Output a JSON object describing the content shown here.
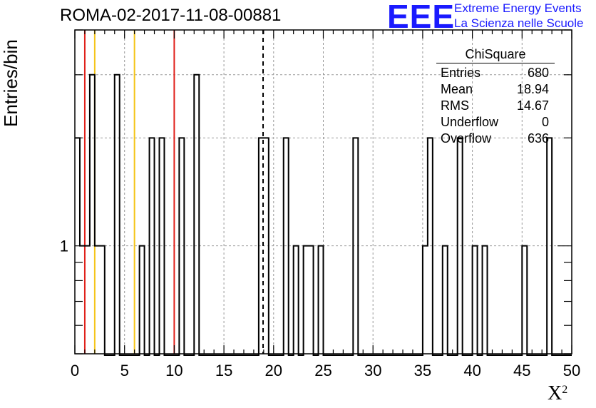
{
  "title": "ROMA-02-2017-11-08-00881",
  "logo": {
    "mark": "EEE",
    "line1": "Extreme Energy Events",
    "line2": "La Scienza nelle Scuole",
    "color": "#1a1aff"
  },
  "stats": {
    "title": "ChiSquare",
    "rows": [
      {
        "label": "Entries",
        "value": "680"
      },
      {
        "label": "Mean",
        "value": "18.94"
      },
      {
        "label": "RMS",
        "value": "14.67"
      },
      {
        "label": "Underflow",
        "value": "0"
      },
      {
        "label": "Overflow",
        "value": "636"
      }
    ]
  },
  "chart_data": {
    "type": "bar",
    "histogram": true,
    "title": "ROMA-02-2017-11-08-00881",
    "xlabel": "X²",
    "ylabel": "Entries/bin",
    "xlim": [
      0,
      50
    ],
    "ylog": true,
    "ylim": [
      0.5,
      4
    ],
    "bin_width": 0.5,
    "x_ticks": [
      0,
      5,
      10,
      15,
      20,
      25,
      30,
      35,
      40,
      45,
      50
    ],
    "y_tick_labels": [
      {
        "value": 1,
        "label": "1"
      }
    ],
    "bins": [
      {
        "x": 0.0,
        "y": 2
      },
      {
        "x": 0.5,
        "y": 1
      },
      {
        "x": 1.0,
        "y": 1
      },
      {
        "x": 1.5,
        "y": 3
      },
      {
        "x": 2.0,
        "y": 1
      },
      {
        "x": 2.5,
        "y": 1
      },
      {
        "x": 4.0,
        "y": 3
      },
      {
        "x": 6.5,
        "y": 1
      },
      {
        "x": 7.5,
        "y": 2
      },
      {
        "x": 8.5,
        "y": 2
      },
      {
        "x": 10.5,
        "y": 2
      },
      {
        "x": 12.0,
        "y": 3
      },
      {
        "x": 18.5,
        "y": 2
      },
      {
        "x": 19.0,
        "y": 2
      },
      {
        "x": 21.0,
        "y": 2
      },
      {
        "x": 22.0,
        "y": 1
      },
      {
        "x": 23.0,
        "y": 1
      },
      {
        "x": 23.5,
        "y": 1
      },
      {
        "x": 24.5,
        "y": 1
      },
      {
        "x": 28.0,
        "y": 2
      },
      {
        "x": 35.0,
        "y": 1
      },
      {
        "x": 35.5,
        "y": 2
      },
      {
        "x": 37.0,
        "y": 1
      },
      {
        "x": 38.5,
        "y": 2
      },
      {
        "x": 40.0,
        "y": 1
      },
      {
        "x": 41.0,
        "y": 1
      },
      {
        "x": 45.0,
        "y": 1
      },
      {
        "x": 47.5,
        "y": 2
      }
    ],
    "vertical_lines": [
      {
        "x": 1.0,
        "color": "#e0201a",
        "style": "solid"
      },
      {
        "x": 2.0,
        "color": "#f5c518",
        "style": "solid"
      },
      {
        "x": 6.0,
        "color": "#f5c518",
        "style": "solid"
      },
      {
        "x": 10.0,
        "color": "#e0201a",
        "style": "solid"
      },
      {
        "x": 18.94,
        "color": "#000000",
        "style": "dashed"
      }
    ],
    "grid": true,
    "stats_box": "top-right"
  }
}
